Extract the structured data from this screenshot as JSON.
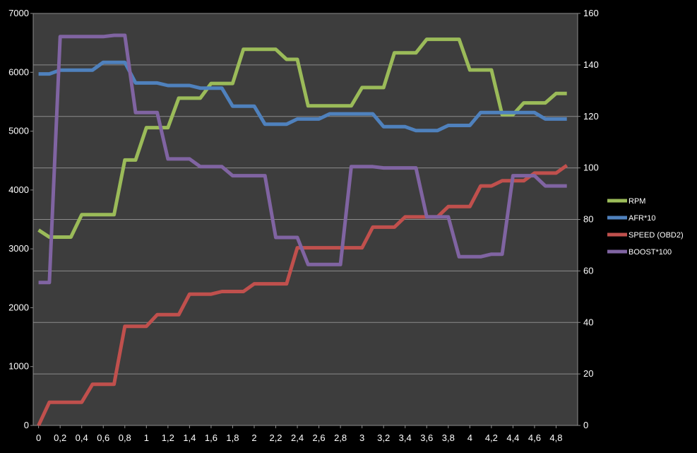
{
  "chart_data": {
    "type": "line",
    "title": "",
    "xlabel": "",
    "ylabel": "",
    "y2label": "",
    "grid": true,
    "legend_placement": "right",
    "x_tick_labels": [
      "0",
      "0,2",
      "0,4",
      "0,6",
      "0,8",
      "1",
      "1,2",
      "1,4",
      "1,6",
      "1,8",
      "2",
      "2,2",
      "2,4",
      "2,6",
      "2,8",
      "3",
      "3,2",
      "3,4",
      "3,6",
      "3,8",
      "4",
      "4,2",
      "4,4",
      "4,6",
      "4,8"
    ],
    "xlim": [
      -0.05,
      5.0
    ],
    "ylim": [
      0,
      7000
    ],
    "y_ticks": [
      0,
      1000,
      2000,
      3000,
      4000,
      5000,
      6000,
      7000
    ],
    "y2lim": [
      0,
      160
    ],
    "y2_ticks": [
      0,
      20,
      40,
      60,
      80,
      100,
      120,
      140,
      160
    ],
    "x": [
      0,
      0.1,
      0.2,
      0.3,
      0.4,
      0.5,
      0.6,
      0.7,
      0.8,
      0.9,
      1.0,
      1.1,
      1.2,
      1.3,
      1.4,
      1.5,
      1.6,
      1.7,
      1.8,
      1.9,
      2.0,
      2.1,
      2.2,
      2.3,
      2.4,
      2.5,
      2.6,
      2.7,
      2.8,
      2.9,
      3.0,
      3.1,
      3.2,
      3.3,
      3.4,
      3.5,
      3.6,
      3.7,
      3.8,
      3.9,
      4.0,
      4.1,
      4.2,
      4.3,
      4.4,
      4.5,
      4.6,
      4.7,
      4.8,
      4.9
    ],
    "series": [
      {
        "name": "RPM",
        "axis": "left",
        "color": "#9bbb59",
        "values": [
          3320,
          3200,
          3200,
          3200,
          3580,
          3580,
          3580,
          3580,
          4510,
          4510,
          5060,
          5060,
          5060,
          5560,
          5560,
          5560,
          5810,
          5810,
          5810,
          6390,
          6390,
          6390,
          6390,
          6220,
          6220,
          5430,
          5430,
          5430,
          5430,
          5430,
          5740,
          5740,
          5740,
          6330,
          6330,
          6330,
          6560,
          6560,
          6560,
          6560,
          6040,
          6040,
          6040,
          5280,
          5280,
          5480,
          5480,
          5480,
          5640,
          5640
        ]
      },
      {
        "name": "AFR*10",
        "axis": "right",
        "color": "#4f81bd",
        "values": [
          136.5,
          136.5,
          138,
          138,
          138,
          138,
          141,
          141,
          141,
          133,
          133,
          133,
          132,
          132,
          132,
          131,
          131,
          131,
          124,
          124,
          124,
          117,
          117,
          117,
          119,
          119,
          119,
          121,
          121,
          121,
          121,
          121,
          116,
          116,
          116,
          114.5,
          114.5,
          114.5,
          116.5,
          116.5,
          116.5,
          121.5,
          121.5,
          121.5,
          121.5,
          121.5,
          121.5,
          119,
          119,
          119
        ]
      },
      {
        "name": "SPEED (OBD2)",
        "axis": "right",
        "color": "#c0504d",
        "values": [
          0,
          9,
          9,
          9,
          9,
          16,
          16,
          16,
          38.5,
          38.5,
          38.5,
          43,
          43,
          43,
          51,
          51,
          51,
          52,
          52,
          52,
          55,
          55,
          55,
          55,
          69,
          69,
          69,
          69,
          69,
          69,
          69,
          77,
          77,
          77,
          81,
          81,
          81,
          81,
          85,
          85,
          85,
          93,
          93,
          95,
          95,
          95,
          98,
          98,
          98,
          101
        ]
      },
      {
        "name": "BOOST*100",
        "axis": "right",
        "color": "#8064a2",
        "values": [
          55.5,
          55.5,
          151,
          151,
          151,
          151,
          151,
          151.5,
          151.5,
          121.5,
          121.5,
          121.5,
          103.5,
          103.5,
          103.5,
          100.5,
          100.5,
          100.5,
          97,
          97,
          97,
          97,
          73,
          73,
          73,
          62.5,
          62.5,
          62.5,
          62.5,
          100.5,
          100.5,
          100.5,
          100,
          100,
          100,
          100,
          81,
          81,
          81,
          65.5,
          65.5,
          65.5,
          66.5,
          66.5,
          97,
          97,
          97,
          93,
          93,
          93
        ]
      }
    ]
  }
}
